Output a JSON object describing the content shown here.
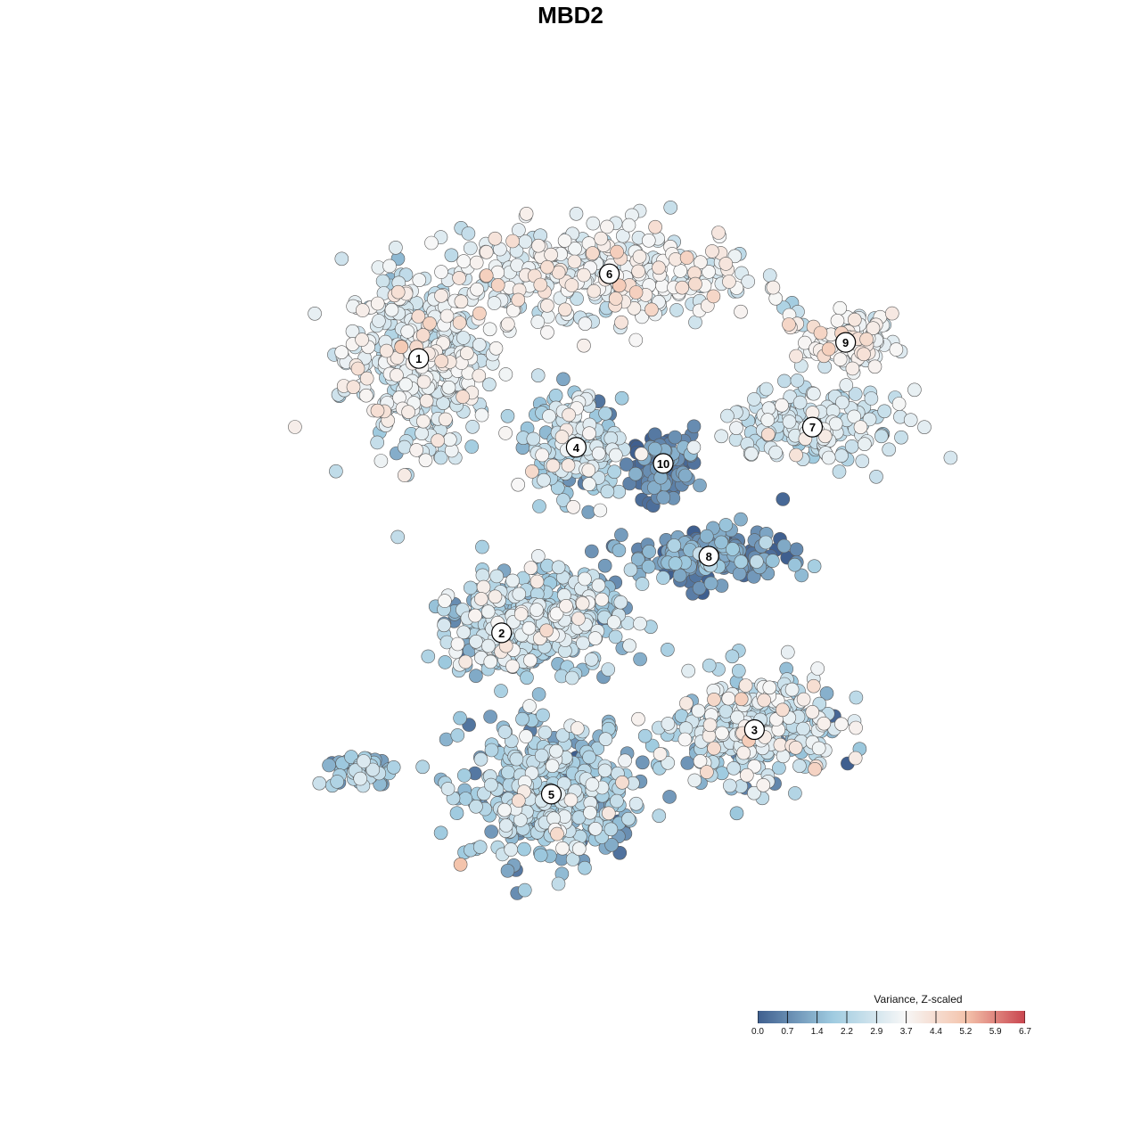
{
  "chart_data": {
    "type": "scatter",
    "title": "MBD2",
    "legend": {
      "title": "Variance, Z-scaled",
      "placement": "bottom-right",
      "ticks": [
        "0.0",
        "0.7",
        "1.4",
        "2.2",
        "2.9",
        "3.7",
        "4.4",
        "5.2",
        "5.9",
        "6.7"
      ],
      "range": [
        0,
        6.7
      ]
    },
    "colors": {
      "low": "#3f5f8f",
      "mid_low": "#9fcbe0",
      "mid": "#f7f7f7",
      "mid_high": "#f4c3ab",
      "high": "#c9454f"
    },
    "x_range": [
      -1,
      1
    ],
    "y_range": [
      -1,
      1
    ],
    "clusters": [
      {
        "label": "1",
        "x": -0.42,
        "y": 0.52,
        "n": 420,
        "sx": 0.16,
        "sy": 0.2,
        "mean": 3.1,
        "sd": 0.6
      },
      {
        "label": "2",
        "x": -0.22,
        "y": -0.16,
        "n": 160,
        "sx": 0.13,
        "sy": 0.09,
        "mean": 1.9,
        "sd": 1.0
      },
      {
        "label": "3",
        "x": 0.39,
        "y": -0.4,
        "n": 360,
        "sx": 0.17,
        "sy": 0.12,
        "mean": 2.5,
        "sd": 0.9
      },
      {
        "label": "4",
        "x": -0.04,
        "y": 0.3,
        "n": 180,
        "sx": 0.1,
        "sy": 0.11,
        "mean": 2.2,
        "sd": 0.9
      },
      {
        "label": "5",
        "x": -0.1,
        "y": -0.56,
        "n": 420,
        "sx": 0.19,
        "sy": 0.16,
        "mean": 2.0,
        "sd": 0.9
      },
      {
        "label": "6",
        "x": 0.04,
        "y": 0.73,
        "n": 340,
        "sx": 0.33,
        "sy": 0.11,
        "mean": 3.4,
        "sd": 0.6
      },
      {
        "label": "7",
        "x": 0.53,
        "y": 0.35,
        "n": 180,
        "sx": 0.19,
        "sy": 0.08,
        "mean": 2.8,
        "sd": 0.5
      },
      {
        "label": "8",
        "x": 0.28,
        "y": 0.03,
        "n": 220,
        "sx": 0.17,
        "sy": 0.06,
        "mean": 0.8,
        "sd": 0.7
      },
      {
        "label": "9",
        "x": 0.61,
        "y": 0.56,
        "n": 120,
        "sx": 0.1,
        "sy": 0.06,
        "mean": 3.4,
        "sd": 0.6
      },
      {
        "label": "10",
        "x": 0.17,
        "y": 0.26,
        "n": 110,
        "sx": 0.07,
        "sy": 0.07,
        "mean": 0.6,
        "sd": 0.5
      },
      {
        "label": "",
        "x": -0.12,
        "y": -0.12,
        "n": 320,
        "sx": 0.18,
        "sy": 0.11,
        "mean": 2.3,
        "sd": 0.8
      },
      {
        "label": "",
        "x": -0.55,
        "y": -0.5,
        "n": 60,
        "sx": 0.06,
        "sy": 0.04,
        "mean": 1.8,
        "sd": 0.7
      }
    ]
  }
}
